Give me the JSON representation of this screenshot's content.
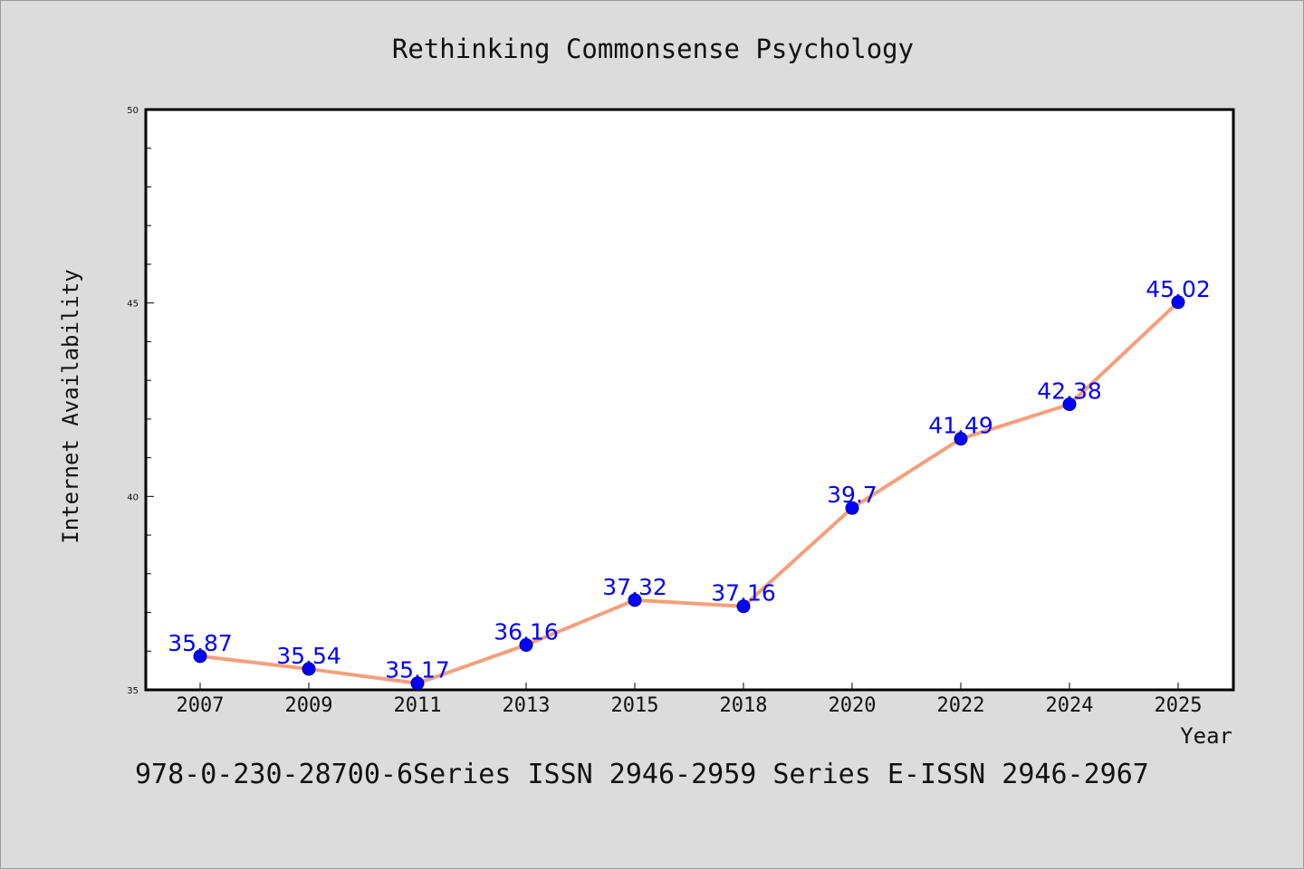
{
  "chart_data": {
    "type": "line",
    "title": "Rethinking Commonsense Psychology",
    "xlabel": "Year",
    "ylabel": "Internet Availability",
    "categories": [
      "2007",
      "2009",
      "2011",
      "2013",
      "2015",
      "2018",
      "2020",
      "2022",
      "2024",
      "2025"
    ],
    "series": [
      {
        "values": [
          35.87,
          35.54,
          35.17,
          36.16,
          37.32,
          37.16,
          39.7,
          41.49,
          42.38,
          45.02
        ],
        "labels": [
          "35.87",
          "35.54",
          "35.17",
          "36.16",
          "37.32",
          "37.16",
          "39.7",
          "41.49",
          "42.38",
          "45.02"
        ],
        "line_color": "#f4a07c",
        "marker_color": "#0000ff"
      }
    ],
    "ylim": [
      35,
      50
    ],
    "yticks": [
      "35",
      "40",
      "45",
      "50"
    ],
    "grid": false,
    "legend": "none"
  },
  "footer": {
    "text": "978-0-230-28700-6Series ISSN 2946-2959 Series E-ISSN 2946-2967"
  },
  "colors": {
    "background": "#dcdcdc",
    "plot_background": "#ffffff",
    "line": "#f4a07c",
    "marker": "#0000ff",
    "data_label": "#0000ff"
  }
}
